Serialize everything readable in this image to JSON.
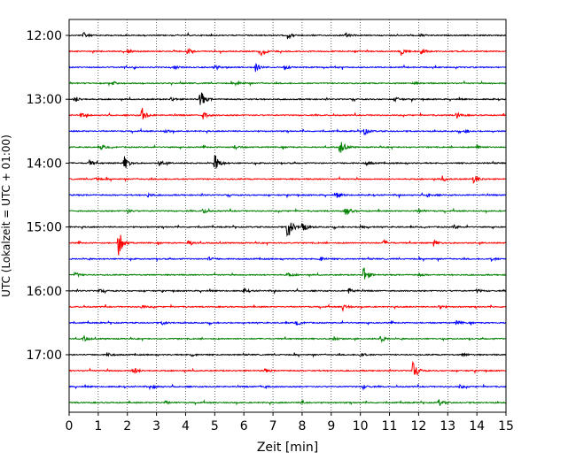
{
  "chart_data": {
    "type": "line",
    "description": "helicorder",
    "xlabel": "Zeit  [min]",
    "ylabel": "UTC (Lokalzeit = UTC + 01:00)",
    "xlim": [
      0,
      15
    ],
    "x_ticks": [
      "0",
      "1",
      "2",
      "3",
      "4",
      "5",
      "6",
      "7",
      "8",
      "9",
      "10",
      "11",
      "12",
      "13",
      "14",
      "15"
    ],
    "y_tick_labels": [
      "12:00",
      "13:00",
      "14:00",
      "15:00",
      "16:00",
      "17:00"
    ],
    "grid_vertical": true,
    "trace_colors": [
      "#000000",
      "#ff0000",
      "#0000ff",
      "#008000"
    ],
    "traces": [
      {
        "start": "12:00",
        "events": [
          {
            "t": 0.5,
            "a": 0.3
          },
          {
            "t": 7.5,
            "a": 0.4
          },
          {
            "t": 9.5,
            "a": 0.25
          },
          {
            "t": 12.0,
            "a": 0.2
          }
        ]
      },
      {
        "start": "12:15",
        "events": [
          {
            "t": 2.0,
            "a": 0.25
          },
          {
            "t": 4.05,
            "a": 0.35
          },
          {
            "t": 6.6,
            "a": 0.6
          },
          {
            "t": 11.4,
            "a": 0.45
          },
          {
            "t": 12.1,
            "a": 0.4
          }
        ]
      },
      {
        "start": "12:30",
        "events": [
          {
            "t": 3.6,
            "a": 0.2
          },
          {
            "t": 5.0,
            "a": 0.25
          },
          {
            "t": 6.4,
            "a": 0.45
          },
          {
            "t": 7.4,
            "a": 0.25
          }
        ]
      },
      {
        "start": "12:45",
        "events": [
          {
            "t": 1.5,
            "a": 0.2
          },
          {
            "t": 5.8,
            "a": 0.2
          },
          {
            "t": 11.8,
            "a": 0.2
          }
        ]
      },
      {
        "start": "13:00",
        "events": [
          {
            "t": 0.2,
            "a": 0.35
          },
          {
            "t": 3.5,
            "a": 0.25
          },
          {
            "t": 4.5,
            "a": 1.2
          },
          {
            "t": 11.2,
            "a": 0.25
          }
        ]
      },
      {
        "start": "13:15",
        "events": [
          {
            "t": 0.4,
            "a": 0.25
          },
          {
            "t": 2.5,
            "a": 0.9
          },
          {
            "t": 4.6,
            "a": 0.4
          },
          {
            "t": 13.3,
            "a": 0.35
          }
        ]
      },
      {
        "start": "13:30",
        "events": [
          {
            "t": 3.3,
            "a": 0.2
          },
          {
            "t": 10.1,
            "a": 0.55
          },
          {
            "t": 13.6,
            "a": 0.2
          }
        ]
      },
      {
        "start": "13:45",
        "events": [
          {
            "t": 1.1,
            "a": 0.25
          },
          {
            "t": 5.7,
            "a": 0.25
          },
          {
            "t": 9.3,
            "a": 0.9
          },
          {
            "t": 14.0,
            "a": 0.25
          }
        ]
      },
      {
        "start": "14:00",
        "events": [
          {
            "t": 0.7,
            "a": 0.35
          },
          {
            "t": 1.9,
            "a": 0.8
          },
          {
            "t": 3.1,
            "a": 0.3
          },
          {
            "t": 5.0,
            "a": 1.1
          },
          {
            "t": 10.2,
            "a": 0.25
          }
        ]
      },
      {
        "start": "14:15",
        "events": [
          {
            "t": 0.9,
            "a": 0.25
          },
          {
            "t": 12.8,
            "a": 0.3
          },
          {
            "t": 13.9,
            "a": 0.55
          }
        ]
      },
      {
        "start": "14:30",
        "events": [
          {
            "t": 2.7,
            "a": 0.2
          },
          {
            "t": 9.2,
            "a": 0.3
          },
          {
            "t": 12.3,
            "a": 0.2
          }
        ]
      },
      {
        "start": "14:45",
        "events": [
          {
            "t": 2.0,
            "a": 0.2
          },
          {
            "t": 4.6,
            "a": 0.3
          },
          {
            "t": 9.5,
            "a": 0.6
          },
          {
            "t": 12.0,
            "a": 0.2
          }
        ]
      },
      {
        "start": "15:00",
        "events": [
          {
            "t": 7.5,
            "a": 1.6
          },
          {
            "t": 8.0,
            "a": 0.8
          },
          {
            "t": 10.0,
            "a": 0.3
          },
          {
            "t": 13.2,
            "a": 0.25
          }
        ]
      },
      {
        "start": "15:15",
        "events": [
          {
            "t": 1.7,
            "a": 1.5
          },
          {
            "t": 4.1,
            "a": 0.35
          },
          {
            "t": 10.8,
            "a": 0.3
          },
          {
            "t": 12.5,
            "a": 0.4
          }
        ]
      },
      {
        "start": "15:30",
        "events": [
          {
            "t": 4.8,
            "a": 0.2
          },
          {
            "t": 8.6,
            "a": 0.4
          },
          {
            "t": 14.5,
            "a": 0.2
          }
        ]
      },
      {
        "start": "15:45",
        "events": [
          {
            "t": 0.2,
            "a": 0.3
          },
          {
            "t": 7.5,
            "a": 0.25
          },
          {
            "t": 10.1,
            "a": 1.1
          },
          {
            "t": 12.0,
            "a": 0.2
          }
        ]
      },
      {
        "start": "16:00",
        "events": [
          {
            "t": 1.0,
            "a": 0.2
          },
          {
            "t": 6.0,
            "a": 0.25
          },
          {
            "t": 9.6,
            "a": 0.35
          },
          {
            "t": 14.0,
            "a": 0.2
          }
        ]
      },
      {
        "start": "16:15",
        "events": [
          {
            "t": 2.5,
            "a": 0.2
          },
          {
            "t": 9.4,
            "a": 0.4
          },
          {
            "t": 12.7,
            "a": 0.25
          }
        ]
      },
      {
        "start": "16:30",
        "events": [
          {
            "t": 3.2,
            "a": 0.2
          },
          {
            "t": 7.8,
            "a": 0.25
          },
          {
            "t": 13.3,
            "a": 0.25
          }
        ]
      },
      {
        "start": "16:45",
        "events": [
          {
            "t": 0.5,
            "a": 0.3
          },
          {
            "t": 9.1,
            "a": 0.3
          },
          {
            "t": 10.7,
            "a": 0.4
          }
        ]
      },
      {
        "start": "17:00",
        "events": [
          {
            "t": 1.3,
            "a": 0.3
          },
          {
            "t": 4.2,
            "a": 0.25
          },
          {
            "t": 10.0,
            "a": 0.3
          },
          {
            "t": 13.5,
            "a": 0.2
          }
        ]
      },
      {
        "start": "17:15",
        "events": [
          {
            "t": 2.2,
            "a": 0.45
          },
          {
            "t": 6.7,
            "a": 0.25
          },
          {
            "t": 11.8,
            "a": 1.0
          }
        ]
      },
      {
        "start": "17:30",
        "events": [
          {
            "t": 2.9,
            "a": 0.2
          },
          {
            "t": 6.6,
            "a": 0.3
          },
          {
            "t": 10.1,
            "a": 0.25
          },
          {
            "t": 13.4,
            "a": 0.2
          }
        ]
      },
      {
        "start": "17:45",
        "events": [
          {
            "t": 3.3,
            "a": 0.2
          },
          {
            "t": 8.0,
            "a": 0.2
          },
          {
            "t": 12.7,
            "a": 0.4
          }
        ]
      }
    ]
  }
}
